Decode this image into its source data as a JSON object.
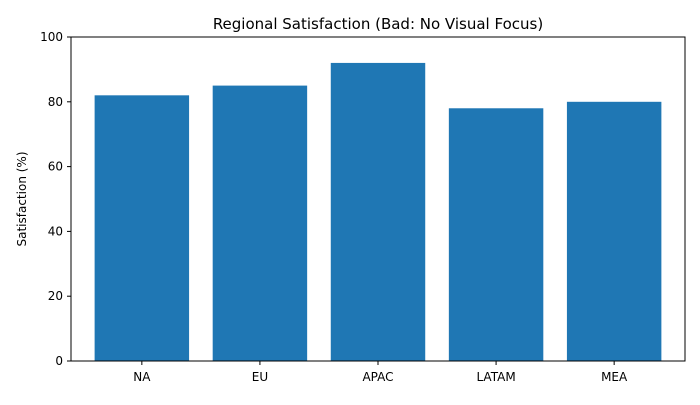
{
  "chart_data": {
    "type": "bar",
    "title": "Regional Satisfaction (Bad: No Visual Focus)",
    "xlabel": "",
    "ylabel": "Satisfaction (%)",
    "categories": [
      "NA",
      "EU",
      "APAC",
      "LATAM",
      "MEA"
    ],
    "values": [
      82,
      85,
      92,
      78,
      80
    ],
    "ylim": [
      0,
      100
    ],
    "yticks": [
      0,
      20,
      40,
      60,
      80,
      100
    ],
    "grid": false,
    "legend": "none",
    "bar_color": "#1f77b4"
  }
}
